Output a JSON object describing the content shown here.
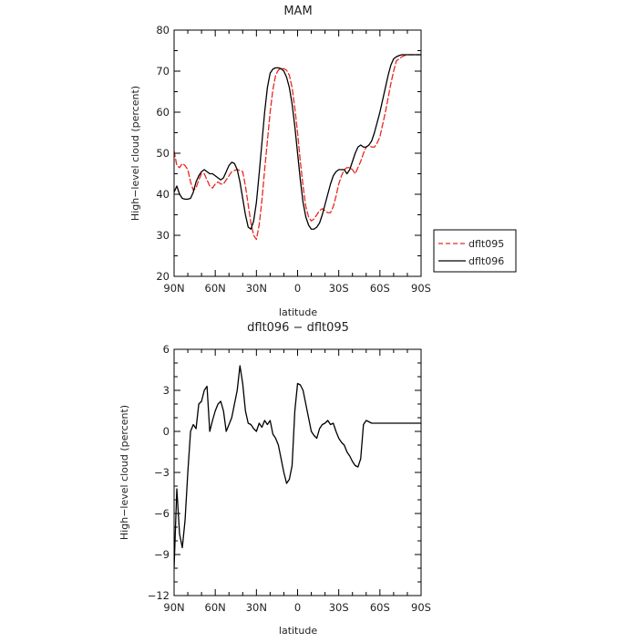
{
  "colors": {
    "dflt095": "#e8281e",
    "dflt096": "#000000",
    "axis": "#000000",
    "text": "#222222"
  },
  "chart_data": [
    {
      "type": "line",
      "title": "MAM",
      "xlabel": "latitude",
      "ylabel": "High−level cloud (percent)",
      "xlim": [
        90,
        -90
      ],
      "ylim": [
        20,
        80
      ],
      "xticks": [
        {
          "value": 90,
          "label": "90N"
        },
        {
          "value": 60,
          "label": "60N"
        },
        {
          "value": 30,
          "label": "30N"
        },
        {
          "value": 0,
          "label": "0"
        },
        {
          "value": -30,
          "label": "30S"
        },
        {
          "value": -60,
          "label": "60S"
        },
        {
          "value": -90,
          "label": "90S"
        }
      ],
      "yticks": [
        {
          "value": 20,
          "label": "20"
        },
        {
          "value": 30,
          "label": "30"
        },
        {
          "value": 40,
          "label": "40"
        },
        {
          "value": 50,
          "label": "50"
        },
        {
          "value": 60,
          "label": "60"
        },
        {
          "value": 70,
          "label": "70"
        },
        {
          "value": 80,
          "label": "80"
        }
      ],
      "grid": false,
      "legend": "right",
      "series": [
        {
          "name": "dflt095",
          "style": "dashed",
          "color": "#e8281e",
          "x": [
            90,
            88,
            86,
            84,
            82,
            80,
            78,
            76,
            74,
            72,
            70,
            68,
            66,
            64,
            62,
            60,
            58,
            56,
            54,
            52,
            50,
            48,
            46,
            44,
            42,
            40,
            38,
            36,
            34,
            32,
            30,
            28,
            26,
            24,
            22,
            20,
            18,
            16,
            14,
            12,
            10,
            8,
            6,
            4,
            2,
            0,
            -2,
            -4,
            -6,
            -8,
            -10,
            -12,
            -14,
            -16,
            -18,
            -20,
            -22,
            -24,
            -26,
            -28,
            -30,
            -32,
            -34,
            -36,
            -38,
            -40,
            -42,
            -44,
            -46,
            -48,
            -50,
            -52,
            -54,
            -56,
            -58,
            -60,
            -62,
            -64,
            -66,
            -68,
            -70,
            -72,
            -74,
            -76,
            -78,
            -80,
            -82,
            -84,
            -86,
            -88,
            -90
          ],
          "y": [
            50.5,
            47.0,
            46.5,
            47.5,
            47.0,
            46.0,
            43.0,
            41.0,
            41.5,
            43.5,
            45.0,
            45.0,
            43.5,
            42.0,
            41.5,
            42.5,
            43.0,
            42.5,
            42.5,
            43.5,
            44.5,
            45.5,
            45.8,
            46.0,
            45.8,
            45.5,
            42.0,
            37.5,
            33.0,
            30.0,
            29.0,
            32.5,
            38.5,
            46.0,
            53.0,
            60.0,
            65.5,
            69.0,
            70.3,
            70.6,
            70.6,
            70.2,
            69.0,
            66.0,
            61.0,
            55.0,
            48.0,
            42.0,
            37.0,
            34.5,
            33.5,
            34.0,
            35.0,
            36.0,
            36.5,
            36.0,
            35.5,
            35.5,
            37.0,
            39.5,
            42.5,
            44.5,
            46.0,
            46.5,
            46.5,
            46.0,
            45.0,
            46.5,
            48.0,
            50.0,
            51.5,
            52.0,
            51.5,
            51.5,
            52.5,
            54.0,
            57.0,
            60.0,
            63.5,
            67.0,
            70.0,
            72.5,
            73.0,
            73.5,
            73.8,
            74.0,
            74.0,
            74.0,
            74.0,
            74.0,
            74.0
          ]
        },
        {
          "name": "dflt096",
          "style": "solid",
          "color": "#000000",
          "x": [
            90,
            88,
            86,
            84,
            82,
            80,
            78,
            76,
            74,
            72,
            70,
            68,
            66,
            64,
            62,
            60,
            58,
            56,
            54,
            52,
            50,
            48,
            46,
            44,
            42,
            40,
            38,
            36,
            34,
            32,
            30,
            28,
            26,
            24,
            22,
            20,
            18,
            16,
            14,
            12,
            10,
            8,
            6,
            4,
            2,
            0,
            -2,
            -4,
            -6,
            -8,
            -10,
            -12,
            -14,
            -16,
            -18,
            -20,
            -22,
            -24,
            -26,
            -28,
            -30,
            -32,
            -34,
            -36,
            -38,
            -40,
            -42,
            -44,
            -46,
            -48,
            -50,
            -52,
            -54,
            -56,
            -58,
            -60,
            -62,
            -64,
            -66,
            -68,
            -70,
            -72,
            -74,
            -76,
            -78,
            -80,
            -82,
            -84,
            -86,
            -88,
            -90
          ],
          "y": [
            40.5,
            42.0,
            40.0,
            39.0,
            38.8,
            38.8,
            39.0,
            40.5,
            43.0,
            44.5,
            45.5,
            46.0,
            45.5,
            45.0,
            45.0,
            44.5,
            44.0,
            43.5,
            44.0,
            45.5,
            47.0,
            47.8,
            47.5,
            46.0,
            43.0,
            39.0,
            35.0,
            32.0,
            31.5,
            33.5,
            38.0,
            45.0,
            52.5,
            60.0,
            66.0,
            69.5,
            70.5,
            70.8,
            70.8,
            70.6,
            70.0,
            68.5,
            66.0,
            62.0,
            56.5,
            50.0,
            43.5,
            38.0,
            34.5,
            32.5,
            31.5,
            31.5,
            32.0,
            33.0,
            35.0,
            37.5,
            40.0,
            42.5,
            44.5,
            45.5,
            46.0,
            46.0,
            46.0,
            45.0,
            46.0,
            48.0,
            50.0,
            51.5,
            52.0,
            51.5,
            51.5,
            52.0,
            53.0,
            55.0,
            57.5,
            60.0,
            63.0,
            66.0,
            69.0,
            71.5,
            73.0,
            73.5,
            73.8,
            74.0,
            74.0,
            74.0,
            74.0,
            74.0,
            74.0,
            74.0,
            74.0
          ]
        }
      ]
    },
    {
      "type": "line",
      "title": "dflt096 − dflt095",
      "xlabel": "latitude",
      "ylabel": "High−level cloud (percent)",
      "xlim": [
        90,
        -90
      ],
      "ylim": [
        -12,
        6
      ],
      "xticks": [
        {
          "value": 90,
          "label": "90N"
        },
        {
          "value": 60,
          "label": "60N"
        },
        {
          "value": 30,
          "label": "30N"
        },
        {
          "value": 0,
          "label": "0"
        },
        {
          "value": -30,
          "label": "30S"
        },
        {
          "value": -60,
          "label": "60S"
        },
        {
          "value": -90,
          "label": "90S"
        }
      ],
      "yticks": [
        {
          "value": 6,
          "label": "6"
        },
        {
          "value": 3,
          "label": "3"
        },
        {
          "value": 0,
          "label": "0"
        },
        {
          "value": -3,
          "label": "−3"
        },
        {
          "value": -6,
          "label": "−6"
        },
        {
          "value": -9,
          "label": "−9"
        },
        {
          "value": -12,
          "label": "−12"
        }
      ],
      "grid": false,
      "legend": "none",
      "series": [
        {
          "style": "solid",
          "color": "#000000",
          "x": [
            90,
            88,
            86,
            84,
            82,
            80,
            78,
            76,
            74,
            72,
            70,
            68,
            66,
            64,
            62,
            60,
            58,
            56,
            54,
            52,
            50,
            48,
            46,
            44,
            42,
            40,
            38,
            36,
            34,
            32,
            30,
            28,
            26,
            24,
            22,
            20,
            18,
            16,
            14,
            12,
            10,
            8,
            6,
            4,
            2,
            0,
            -2,
            -4,
            -6,
            -8,
            -10,
            -12,
            -14,
            -16,
            -18,
            -20,
            -22,
            -24,
            -26,
            -28,
            -30,
            -32,
            -34,
            -36,
            -38,
            -40,
            -42,
            -44,
            -46,
            -48,
            -50,
            -52,
            -54,
            -56,
            -58,
            -60,
            -62,
            -64,
            -66,
            -68,
            -70,
            -72,
            -74,
            -76,
            -78,
            -80,
            -82,
            -84,
            -86,
            -88,
            -90
          ],
          "y": [
            -10.0,
            -4.2,
            -7.5,
            -8.5,
            -6.5,
            -3.0,
            0.0,
            0.5,
            0.2,
            2.0,
            2.2,
            3.0,
            3.3,
            0.0,
            0.8,
            1.5,
            2.0,
            2.2,
            1.5,
            0.0,
            0.5,
            1.0,
            2.0,
            3.0,
            4.8,
            3.5,
            1.5,
            0.6,
            0.5,
            0.2,
            0.0,
            0.6,
            0.3,
            0.8,
            0.5,
            0.8,
            -0.2,
            -0.5,
            -1.0,
            -2.0,
            -3.0,
            -3.8,
            -3.5,
            -2.5,
            1.5,
            3.5,
            3.4,
            3.0,
            2.0,
            1.0,
            0.0,
            -0.3,
            -0.5,
            0.2,
            0.5,
            0.6,
            0.8,
            0.5,
            0.6,
            0.0,
            -0.5,
            -0.8,
            -1.0,
            -1.5,
            -1.8,
            -2.2,
            -2.5,
            -2.6,
            -2.0,
            0.5,
            0.8,
            0.7,
            0.6,
            0.6,
            0.6,
            0.6,
            0.6,
            0.6,
            0.6,
            0.6,
            0.6,
            0.6,
            0.6,
            0.6,
            0.6,
            0.6,
            0.6,
            0.6,
            0.6,
            0.6,
            0.6
          ]
        }
      ]
    }
  ]
}
